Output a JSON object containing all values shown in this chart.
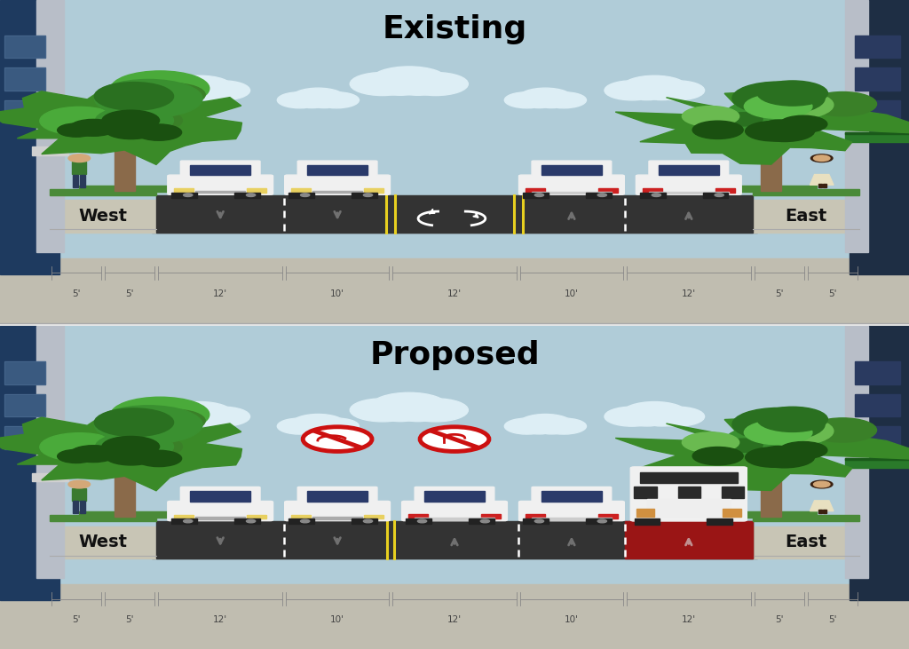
{
  "title_existing": "Existing",
  "title_proposed": "Proposed",
  "sky_color": "#b0ccd8",
  "cloud_color": "#ddeef5",
  "road_color": "#333333",
  "sidewalk_color": "#c8c5b5",
  "curb_dark": "#444444",
  "median_yellow": "#e8d020",
  "bus_lane_red": "#9a1515",
  "building_left_blue": "#2a4a70",
  "building_left_light": "#c8c8c8",
  "building_right_dark": "#1a2a40",
  "awning_green": "#2a7a30",
  "tree_trunk_color": "#8a6a4a",
  "tree_dark_green": "#2a7020",
  "tree_mid_green": "#3a9030",
  "tree_light_green": "#6aba50",
  "grass_color": "#4a8a38",
  "car_body_color": "#f0f0f0",
  "car_window_color": "#2a3a6a",
  "car_light_yellow": "#e8d060",
  "car_light_red": "#cc2020",
  "wheel_color": "#222222",
  "arrow_gray": "#707070",
  "arrow_white": "#ffffff",
  "person_green": "#3a7a30",
  "person_skin": "#d4a878",
  "person_pants": "#2a3a5a",
  "person_female_body": "#e8e0c0",
  "person_female_hair": "#3a2010",
  "widths_ft": [
    5,
    5,
    12,
    10,
    12,
    10,
    12,
    5,
    5
  ],
  "dim_labels": [
    "5'",
    "5'",
    "12'",
    "10'",
    "12'",
    "10'",
    "12'",
    "5'",
    "5'"
  ],
  "west_label": "West",
  "east_label": "East"
}
